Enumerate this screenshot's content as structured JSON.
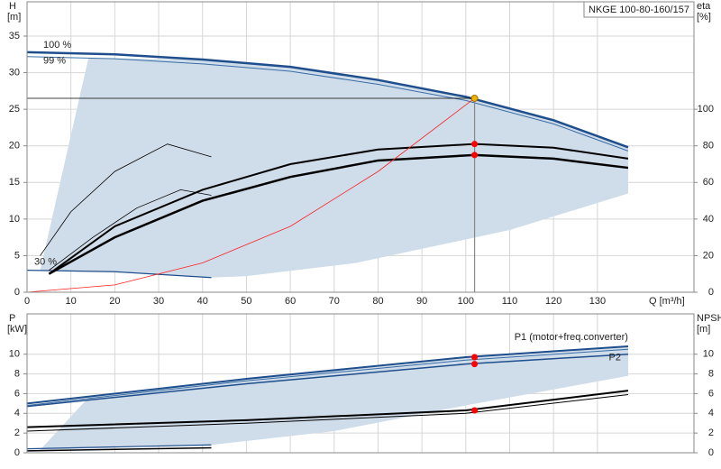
{
  "chart_data": [
    {
      "type": "line",
      "title": "NKGE 100-80-160/157",
      "ylabel": "H",
      "yunit": "[m]",
      "y2label": "eta",
      "y2unit": "[%]",
      "xlabel": "Q [m³/h]",
      "xlim": [
        0,
        152
      ],
      "xticks": [
        0,
        10,
        20,
        30,
        40,
        50,
        60,
        70,
        80,
        90,
        100,
        110,
        120,
        130
      ],
      "ylim": [
        0,
        35
      ],
      "yticks": [
        0,
        5,
        10,
        15,
        20,
        25,
        30,
        35
      ],
      "y2lim": [
        0,
        140
      ],
      "y2ticks": [
        0,
        20,
        40,
        60,
        80,
        100
      ],
      "grid": true,
      "range_color": "#cfdce9",
      "range": {
        "x": [
          3,
          14,
          40,
          60,
          80,
          100,
          120,
          137,
          137,
          110,
          75,
          50,
          42,
          20,
          3
        ],
        "y": [
          3,
          32,
          31.8,
          30.8,
          29,
          26.7,
          23.5,
          19.8,
          13.5,
          8.5,
          4,
          2.2,
          2,
          2.8,
          3
        ]
      },
      "series": [
        {
          "label": "100 %",
          "color": "#1f4e8c",
          "width": 2.5,
          "x": [
            0,
            20,
            40,
            60,
            80,
            100,
            120,
            137
          ],
          "values": [
            32.8,
            32.5,
            31.8,
            30.8,
            29,
            26.7,
            23.5,
            19.8
          ]
        },
        {
          "label": "99 %",
          "color": "#3a6ea5",
          "width": 1,
          "x": [
            0,
            20,
            40,
            60,
            80,
            100,
            120,
            137
          ],
          "values": [
            32.2,
            31.9,
            31.2,
            30.2,
            28.4,
            26.2,
            23,
            19.3
          ]
        },
        {
          "label": "30 %",
          "color": "#1f4e8c",
          "width": 1.2,
          "x": [
            0,
            20,
            42
          ],
          "values": [
            3,
            2.8,
            2
          ]
        },
        {
          "color": "#000000",
          "width": 2,
          "axis": "y2",
          "x": [
            5,
            20,
            40,
            60,
            80,
            102,
            120,
            137
          ],
          "values": [
            10,
            36,
            56,
            70,
            78,
            81,
            79,
            73
          ]
        },
        {
          "color": "#000000",
          "width": 2.5,
          "axis": "y2",
          "x": [
            5,
            20,
            40,
            60,
            80,
            102,
            120,
            137
          ],
          "values": [
            10,
            30,
            50,
            63,
            72,
            75,
            73,
            68
          ]
        },
        {
          "color": "#000000",
          "width": 0.8,
          "axis": "y2",
          "x": [
            3,
            10,
            20,
            32,
            42
          ],
          "values": [
            20,
            44,
            66,
            81,
            74
          ]
        },
        {
          "color": "#000000",
          "width": 0.8,
          "axis": "y2",
          "x": [
            5,
            15,
            25,
            35,
            42
          ],
          "values": [
            12,
            30,
            46,
            56,
            53
          ]
        },
        {
          "color": "#ff2020",
          "width": 0.8,
          "x": [
            0,
            20,
            40,
            60,
            80,
            102
          ],
          "values": [
            0,
            1,
            4,
            9,
            16.5,
            26.5
          ]
        },
        {
          "color": "#000000",
          "width": 0.8,
          "x": [
            0,
            102
          ],
          "values": [
            26.5,
            26.5
          ]
        },
        {
          "color": "#888888",
          "width": 1.2,
          "x": [
            102,
            102
          ],
          "values": [
            26.5,
            0
          ]
        }
      ],
      "points": [
        {
          "x": 102,
          "y": 26.5,
          "color": "#f0b000"
        },
        {
          "x": 102,
          "y": 81,
          "axis": "y2",
          "color": "#ff0000"
        },
        {
          "x": 102,
          "y": 75,
          "axis": "y2",
          "color": "#ff0000"
        }
      ]
    },
    {
      "type": "line",
      "ylabel": "P",
      "yunit": "[kW]",
      "y2label": "NPSH",
      "y2unit": "[m]",
      "xlim": [
        0,
        152
      ],
      "xticks": [
        0,
        10,
        20,
        30,
        40,
        50,
        60,
        70,
        80,
        90,
        100,
        110,
        120,
        130
      ],
      "ylim": [
        0,
        14
      ],
      "yticks": [
        0,
        2,
        4,
        6,
        8,
        10
      ],
      "y2lim": [
        0,
        14
      ],
      "y2ticks": [
        0,
        2,
        4,
        6,
        8,
        10
      ],
      "grid": true,
      "range_color": "#cfdce9",
      "range": {
        "x": [
          3,
          14,
          50,
          100,
          137,
          137,
          100,
          70,
          42,
          3
        ],
        "y": [
          0.3,
          5.6,
          7.5,
          9.7,
          10.8,
          7.8,
          4.8,
          2.2,
          0.8,
          0.3
        ]
      },
      "series": [
        {
          "label": "P1 (motor+freq.converter)",
          "color": "#1f4e8c",
          "width": 2,
          "x": [
            0,
            50,
            100,
            137
          ],
          "values": [
            5,
            7.5,
            9.7,
            10.8
          ]
        },
        {
          "color": "#3a6ea5",
          "width": 1,
          "x": [
            0,
            50,
            100,
            137
          ],
          "values": [
            4.8,
            7.3,
            9.4,
            10.5
          ]
        },
        {
          "label": "P2",
          "color": "#1f4e8c",
          "width": 1.5,
          "x": [
            0,
            50,
            100,
            137
          ],
          "values": [
            4.7,
            7.0,
            9.0,
            10.0
          ]
        },
        {
          "color": "#1f4e8c",
          "width": 1.2,
          "x": [
            0,
            42
          ],
          "values": [
            0.4,
            0.8
          ]
        },
        {
          "color": "#000000",
          "width": 2,
          "axis": "y2",
          "x": [
            0,
            50,
            100,
            137
          ],
          "values": [
            2.6,
            3.3,
            4.3,
            6.3
          ]
        },
        {
          "color": "#000000",
          "width": 1,
          "axis": "y2",
          "x": [
            0,
            50,
            100,
            137
          ],
          "values": [
            2.2,
            3.0,
            4.0,
            5.9
          ]
        },
        {
          "color": "#000000",
          "width": 1.5,
          "axis": "y2",
          "x": [
            0,
            42
          ],
          "values": [
            0.2,
            0.5
          ]
        }
      ],
      "points": [
        {
          "x": 102,
          "y": 9.7,
          "color": "#ff0000"
        },
        {
          "x": 102,
          "y": 9.0,
          "color": "#ff0000"
        },
        {
          "x": 102,
          "y": 4.3,
          "axis": "y2",
          "color": "#ff0000"
        }
      ]
    }
  ]
}
